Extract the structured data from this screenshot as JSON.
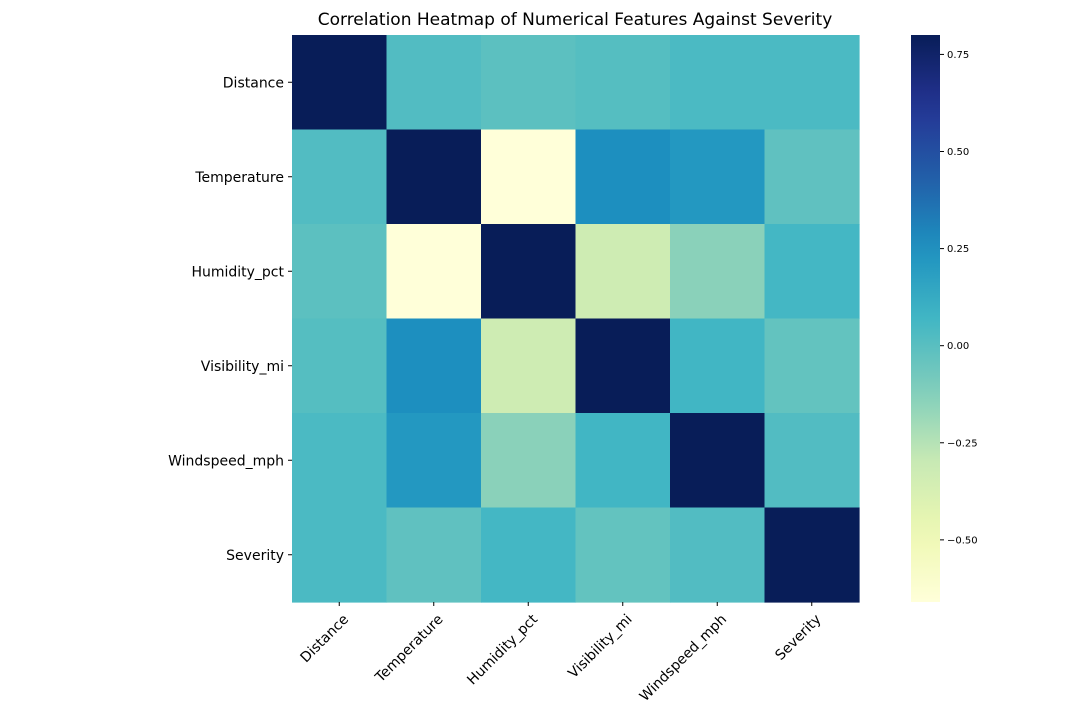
{
  "chart_data": {
    "type": "heatmap",
    "title": "Correlation Heatmap of Numerical Features Against Severity",
    "x_categories": [
      "Distance",
      "Temperature",
      "Humidity_pct",
      "Visibility_mi",
      "Windspeed_mph",
      "Severity"
    ],
    "y_categories": [
      "Distance",
      "Temperature",
      "Humidity_pct",
      "Visibility_mi",
      "Windspeed_mph",
      "Severity"
    ],
    "values": [
      [
        1.0,
        0.02,
        -0.01,
        0.01,
        0.04,
        0.04
      ],
      [
        0.02,
        1.0,
        -0.66,
        0.26,
        0.22,
        -0.02
      ],
      [
        -0.01,
        -0.66,
        1.0,
        -0.33,
        -0.14,
        0.06
      ],
      [
        0.01,
        0.26,
        -0.33,
        1.0,
        0.07,
        -0.03
      ],
      [
        0.04,
        0.22,
        -0.14,
        0.07,
        1.0,
        0.02
      ],
      [
        0.04,
        -0.02,
        0.06,
        -0.03,
        0.02,
        1.0
      ]
    ],
    "colormap": "YlGnBu",
    "colorbar": {
      "range": [
        -0.66,
        0.8
      ],
      "ticks": [
        0.75,
        0.5,
        0.25,
        0.0,
        -0.25,
        -0.5
      ],
      "tick_labels": [
        "0.75",
        "0.50",
        "0.25",
        "0.00",
        "−0.25",
        "−0.50"
      ]
    },
    "grid": false,
    "legend": "colorbar-right"
  }
}
